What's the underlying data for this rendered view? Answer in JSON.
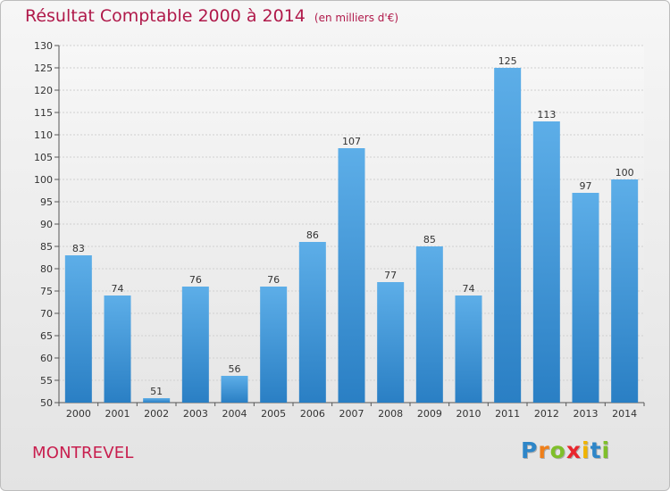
{
  "title": "Résultat Comptable 2000 à 2014",
  "subtitle": "(en milliers d'€)",
  "commune": "MONTREVEL",
  "logo": {
    "letters": [
      "P",
      "r",
      "o",
      "x",
      "i",
      "t",
      "i"
    ],
    "colors": [
      "#2e86c8",
      "#ef7f1a",
      "#7fbf2a",
      "#e8262d",
      "#f0b400",
      "#2e86c8",
      "#7fbf2a"
    ]
  },
  "chart_data": {
    "type": "bar",
    "categories": [
      "2000",
      "2001",
      "2002",
      "2003",
      "2004",
      "2005",
      "2006",
      "2007",
      "2008",
      "2009",
      "2010",
      "2011",
      "2012",
      "2013",
      "2014"
    ],
    "values": [
      83,
      74,
      51,
      76,
      56,
      76,
      86,
      107,
      77,
      85,
      74,
      125,
      113,
      97,
      100
    ],
    "title": "Résultat Comptable 2000 à 2014",
    "subtitle": "(en milliers d'€)",
    "xlabel": "",
    "ylabel": "",
    "ylim": [
      50,
      130
    ],
    "yticks": [
      50,
      55,
      60,
      65,
      70,
      75,
      80,
      85,
      90,
      95,
      100,
      105,
      110,
      115,
      120,
      125,
      130
    ],
    "grid": true,
    "bar_color_top": "#5daee8",
    "bar_color_bottom": "#2a7fc4"
  }
}
